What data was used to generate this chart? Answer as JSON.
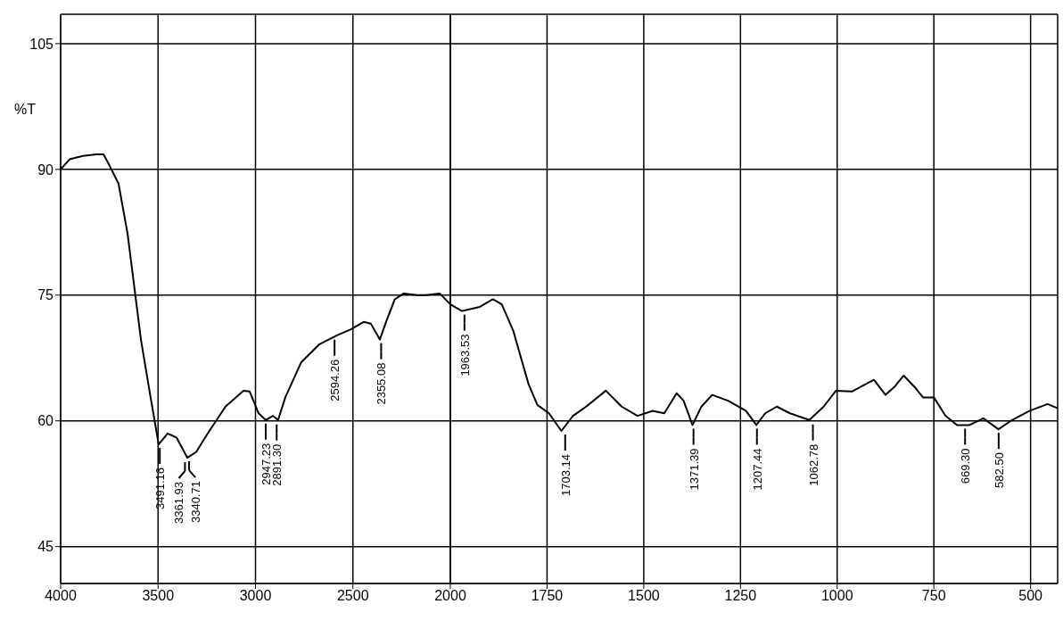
{
  "chart_data": [
    {
      "type": "line",
      "ylabel": "%T",
      "xlim": [
        4000,
        2000
      ],
      "xticks": [
        4000,
        3500,
        3000,
        2500,
        2000
      ],
      "ylim": [
        40.6,
        108.5
      ],
      "yticks": [
        45,
        60,
        75,
        90,
        105
      ],
      "grid": true,
      "series": [
        {
          "color": "#000000",
          "x": [
            4000,
            3954,
            3886,
            3817,
            3780,
            3748,
            3703,
            3657,
            3634,
            3588,
            3542,
            3497,
            3451,
            3405,
            3350,
            3304,
            3245,
            3154,
            3062,
            3030,
            2984,
            2948,
            2911,
            2884,
            2847,
            2765,
            2674,
            2582,
            2513,
            2445,
            2408,
            2362,
            2330,
            2285,
            2239,
            2170,
            2124,
            2055,
            2000
          ],
          "values": [
            90,
            91.2,
            91.6,
            91.8,
            91.8,
            90.4,
            88.3,
            82.4,
            78.2,
            69.7,
            63.3,
            57.2,
            58.5,
            58,
            55.6,
            56.3,
            58.5,
            61.7,
            63.6,
            63.5,
            60.9,
            60.1,
            60.6,
            60.1,
            62.8,
            67,
            69.1,
            70.2,
            70.9,
            71.8,
            71.6,
            69.7,
            71.8,
            74.5,
            75.2,
            75,
            75,
            75.2,
            73.9
          ]
        }
      ],
      "annotations": [
        {
          "text": "3491.16",
          "x": 3491.16,
          "y": 57.2
        },
        {
          "text": "3361.93",
          "x": 3361.93,
          "y": 55.5
        },
        {
          "text": "3340.71",
          "x": 3340.71,
          "y": 55.6
        },
        {
          "text": "2947.23",
          "x": 2947.23,
          "y": 60.1
        },
        {
          "text": "2891.30",
          "x": 2891.3,
          "y": 60
        },
        {
          "text": "2594.26",
          "x": 2594.26,
          "y": 70.1
        },
        {
          "text": "2355.08",
          "x": 2355.08,
          "y": 69.7
        }
      ]
    },
    {
      "type": "line",
      "xlim": [
        2000,
        430
      ],
      "xticks": [
        1750,
        1500,
        1250,
        1000,
        750,
        500
      ],
      "ylim": [
        40.6,
        108.5
      ],
      "yticks": [
        45,
        60,
        75,
        90,
        105
      ],
      "grid": true,
      "tick_labels": "x",
      "series": [
        {
          "color": "#000000",
          "x": [
            2000,
            1970,
            1924,
            1890,
            1867,
            1837,
            1798,
            1775,
            1745,
            1713,
            1683,
            1649,
            1598,
            1557,
            1516,
            1477,
            1447,
            1415,
            1397,
            1374,
            1351,
            1323,
            1282,
            1236,
            1209,
            1186,
            1156,
            1122,
            1072,
            1035,
            1003,
            962,
            905,
            875,
            851,
            828,
            801,
            778,
            750,
            720,
            690,
            658,
            622,
            583,
            548,
            502,
            456,
            430
          ],
          "values": [
            73.9,
            73.1,
            73.6,
            74.5,
            73.9,
            70.7,
            64.4,
            61.9,
            60.9,
            58.8,
            60.6,
            61.7,
            63.6,
            61.7,
            60.6,
            61.2,
            60.9,
            63.3,
            62.4,
            59.5,
            61.7,
            63.1,
            62.4,
            61.2,
            59.5,
            60.9,
            61.7,
            60.9,
            60.1,
            61.7,
            63.6,
            63.5,
            64.9,
            63.1,
            64.1,
            65.4,
            64.1,
            62.8,
            62.8,
            60.6,
            59.5,
            59.5,
            60.3,
            59,
            60.1,
            61.2,
            62,
            61.5
          ]
        }
      ],
      "annotations": [
        {
          "text": "1963.53",
          "x": 1963.53,
          "y": 73.1
        },
        {
          "text": "1703.14",
          "x": 1703.14,
          "y": 58.8
        },
        {
          "text": "1371.39",
          "x": 1371.39,
          "y": 59.5
        },
        {
          "text": "1207.44",
          "x": 1207.44,
          "y": 59.5
        },
        {
          "text": "1062.78",
          "x": 1062.78,
          "y": 60
        },
        {
          "text": "669.30",
          "x": 669.3,
          "y": 59.5
        },
        {
          "text": "582.50",
          "x": 582.5,
          "y": 59
        }
      ]
    }
  ]
}
